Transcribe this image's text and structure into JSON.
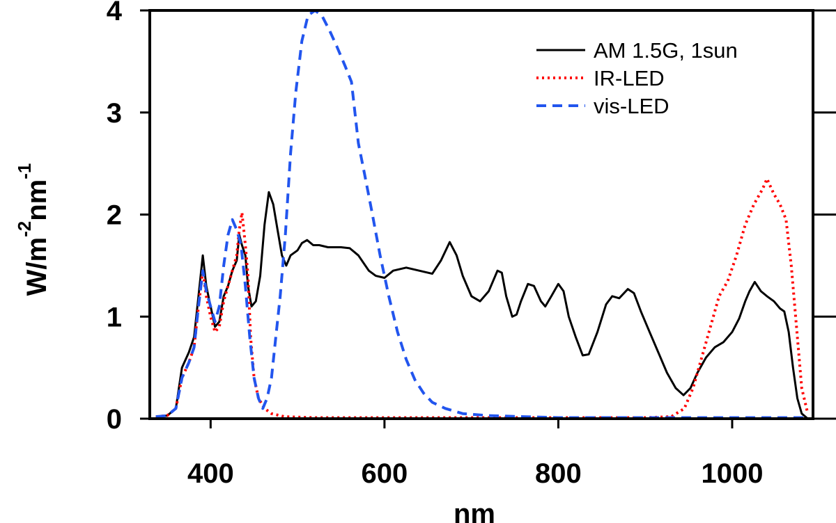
{
  "chart_data": {
    "type": "line",
    "title": "",
    "xlabel": "nm",
    "ylabel_parts": [
      "W/m",
      "-2",
      "nm",
      "-1"
    ],
    "xlim": [
      330,
      1093
    ],
    "ylim": [
      0,
      4
    ],
    "x_ticks": [
      400,
      600,
      800,
      1000
    ],
    "x_tick_labels": [
      "400",
      "600",
      "800",
      "1000"
    ],
    "y_ticks": [
      0,
      1,
      2,
      3,
      4
    ],
    "y_tick_labels": [
      "0",
      "1",
      "2",
      "3",
      "4"
    ],
    "grid": false,
    "legend_position": "top-right",
    "series": [
      {
        "name": "AM 1.5G, 1sun",
        "color": "#000000",
        "style": "solid",
        "points": [
          [
            337,
            0.02
          ],
          [
            350,
            0.03
          ],
          [
            360,
            0.1
          ],
          [
            367,
            0.5
          ],
          [
            375,
            0.65
          ],
          [
            381,
            0.8
          ],
          [
            386,
            1.2
          ],
          [
            391,
            1.6
          ],
          [
            395,
            1.3
          ],
          [
            400,
            1.1
          ],
          [
            405,
            0.9
          ],
          [
            410,
            0.95
          ],
          [
            415,
            1.2
          ],
          [
            420,
            1.3
          ],
          [
            425,
            1.45
          ],
          [
            430,
            1.55
          ],
          [
            433,
            1.8
          ],
          [
            436,
            1.7
          ],
          [
            440,
            1.6
          ],
          [
            443,
            1.3
          ],
          [
            447,
            1.1
          ],
          [
            452,
            1.15
          ],
          [
            457,
            1.4
          ],
          [
            462,
            1.9
          ],
          [
            467,
            2.22
          ],
          [
            472,
            2.1
          ],
          [
            477,
            1.85
          ],
          [
            482,
            1.6
          ],
          [
            487,
            1.5
          ],
          [
            492,
            1.6
          ],
          [
            500,
            1.65
          ],
          [
            505,
            1.72
          ],
          [
            511,
            1.75
          ],
          [
            518,
            1.7
          ],
          [
            525,
            1.7
          ],
          [
            535,
            1.68
          ],
          [
            550,
            1.68
          ],
          [
            560,
            1.67
          ],
          [
            570,
            1.6
          ],
          [
            582,
            1.45
          ],
          [
            590,
            1.4
          ],
          [
            600,
            1.38
          ],
          [
            610,
            1.45
          ],
          [
            625,
            1.48
          ],
          [
            640,
            1.45
          ],
          [
            655,
            1.42
          ],
          [
            665,
            1.55
          ],
          [
            675,
            1.73
          ],
          [
            683,
            1.6
          ],
          [
            690,
            1.4
          ],
          [
            700,
            1.2
          ],
          [
            710,
            1.15
          ],
          [
            720,
            1.25
          ],
          [
            730,
            1.45
          ],
          [
            735,
            1.43
          ],
          [
            740,
            1.2
          ],
          [
            747,
            1.0
          ],
          [
            752,
            1.02
          ],
          [
            757,
            1.15
          ],
          [
            765,
            1.32
          ],
          [
            772,
            1.3
          ],
          [
            780,
            1.15
          ],
          [
            785,
            1.1
          ],
          [
            792,
            1.2
          ],
          [
            800,
            1.32
          ],
          [
            806,
            1.25
          ],
          [
            812,
            1.0
          ],
          [
            820,
            0.8
          ],
          [
            828,
            0.62
          ],
          [
            835,
            0.63
          ],
          [
            845,
            0.85
          ],
          [
            855,
            1.12
          ],
          [
            862,
            1.2
          ],
          [
            870,
            1.18
          ],
          [
            880,
            1.27
          ],
          [
            887,
            1.23
          ],
          [
            895,
            1.05
          ],
          [
            905,
            0.85
          ],
          [
            915,
            0.65
          ],
          [
            925,
            0.45
          ],
          [
            935,
            0.3
          ],
          [
            944,
            0.23
          ],
          [
            952,
            0.3
          ],
          [
            960,
            0.45
          ],
          [
            970,
            0.6
          ],
          [
            980,
            0.7
          ],
          [
            990,
            0.75
          ],
          [
            1000,
            0.85
          ],
          [
            1008,
            0.98
          ],
          [
            1015,
            1.15
          ],
          [
            1020,
            1.25
          ],
          [
            1026,
            1.34
          ],
          [
            1033,
            1.25
          ],
          [
            1040,
            1.2
          ],
          [
            1048,
            1.15
          ],
          [
            1055,
            1.08
          ],
          [
            1060,
            1.05
          ],
          [
            1065,
            0.85
          ],
          [
            1070,
            0.5
          ],
          [
            1075,
            0.2
          ],
          [
            1080,
            0.05
          ],
          [
            1087,
            0.0
          ]
        ]
      },
      {
        "name": "IR-LED",
        "color": "#ff0000",
        "style": "dotted",
        "points": [
          [
            337,
            0.02
          ],
          [
            350,
            0.03
          ],
          [
            360,
            0.1
          ],
          [
            367,
            0.4
          ],
          [
            375,
            0.55
          ],
          [
            381,
            0.7
          ],
          [
            386,
            1.1
          ],
          [
            391,
            1.45
          ],
          [
            395,
            1.2
          ],
          [
            400,
            1.0
          ],
          [
            405,
            0.85
          ],
          [
            410,
            0.9
          ],
          [
            415,
            1.15
          ],
          [
            420,
            1.3
          ],
          [
            425,
            1.45
          ],
          [
            430,
            1.6
          ],
          [
            433,
            1.85
          ],
          [
            436,
            2.02
          ],
          [
            440,
            1.7
          ],
          [
            443,
            1.4
          ],
          [
            446,
            0.8
          ],
          [
            450,
            0.4
          ],
          [
            455,
            0.2
          ],
          [
            462,
            0.1
          ],
          [
            470,
            0.05
          ],
          [
            485,
            0.02
          ],
          [
            520,
            0.01
          ],
          [
            600,
            0.01
          ],
          [
            800,
            0.01
          ],
          [
            900,
            0.01
          ],
          [
            930,
            0.02
          ],
          [
            945,
            0.1
          ],
          [
            955,
            0.3
          ],
          [
            965,
            0.6
          ],
          [
            975,
            0.9
          ],
          [
            985,
            1.2
          ],
          [
            995,
            1.35
          ],
          [
            1005,
            1.6
          ],
          [
            1015,
            1.9
          ],
          [
            1025,
            2.1
          ],
          [
            1035,
            2.25
          ],
          [
            1040,
            2.35
          ],
          [
            1048,
            2.2
          ],
          [
            1055,
            2.1
          ],
          [
            1062,
            1.95
          ],
          [
            1068,
            1.5
          ],
          [
            1074,
            0.9
          ],
          [
            1080,
            0.3
          ],
          [
            1087,
            0.05
          ]
        ]
      },
      {
        "name": "vis-LED",
        "color": "#2255ee",
        "style": "dashed",
        "points": [
          [
            337,
            0.02
          ],
          [
            350,
            0.03
          ],
          [
            360,
            0.1
          ],
          [
            367,
            0.4
          ],
          [
            375,
            0.55
          ],
          [
            381,
            0.7
          ],
          [
            386,
            1.1
          ],
          [
            391,
            1.45
          ],
          [
            395,
            1.25
          ],
          [
            400,
            1.1
          ],
          [
            405,
            0.95
          ],
          [
            410,
            1.1
          ],
          [
            415,
            1.5
          ],
          [
            420,
            1.8
          ],
          [
            425,
            1.95
          ],
          [
            430,
            1.85
          ],
          [
            435,
            1.7
          ],
          [
            440,
            1.3
          ],
          [
            445,
            0.8
          ],
          [
            450,
            0.4
          ],
          [
            455,
            0.2
          ],
          [
            460,
            0.1
          ],
          [
            465,
            0.2
          ],
          [
            470,
            0.4
          ],
          [
            475,
            0.8
          ],
          [
            480,
            1.2
          ],
          [
            486,
            1.8
          ],
          [
            492,
            2.6
          ],
          [
            498,
            3.2
          ],
          [
            505,
            3.7
          ],
          [
            512,
            3.95
          ],
          [
            520,
            4.0
          ],
          [
            528,
            3.95
          ],
          [
            537,
            3.8
          ],
          [
            545,
            3.65
          ],
          [
            555,
            3.45
          ],
          [
            562,
            3.3
          ],
          [
            570,
            2.7
          ],
          [
            577,
            2.4
          ],
          [
            585,
            2.05
          ],
          [
            595,
            1.6
          ],
          [
            605,
            1.2
          ],
          [
            615,
            0.85
          ],
          [
            625,
            0.58
          ],
          [
            635,
            0.38
          ],
          [
            645,
            0.25
          ],
          [
            655,
            0.16
          ],
          [
            670,
            0.1
          ],
          [
            690,
            0.05
          ],
          [
            720,
            0.03
          ],
          [
            760,
            0.02
          ],
          [
            800,
            0.01
          ],
          [
            900,
            0.01
          ],
          [
            1000,
            0.01
          ],
          [
            1087,
            0.01
          ]
        ]
      }
    ]
  }
}
